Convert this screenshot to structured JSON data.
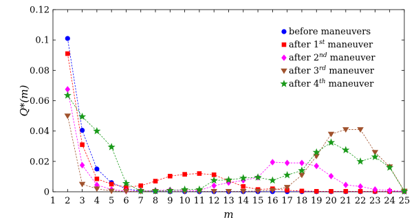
{
  "chart_data": {
    "type": "line",
    "title": "",
    "xlabel": "m",
    "ylabel": "Q*(m)",
    "xlim": [
      1,
      25
    ],
    "ylim": [
      0,
      0.12
    ],
    "xticks": [
      "1",
      "2",
      "3",
      "4",
      "5",
      "6",
      "7",
      "8",
      "9",
      "10",
      "11",
      "12",
      "13",
      "14",
      "15",
      "16",
      "17",
      "18",
      "19",
      "20",
      "21",
      "22",
      "23",
      "24",
      "25"
    ],
    "yticks": [
      "0",
      "0.02",
      "0.04",
      "0.06",
      "0.08",
      "0.1",
      "0.12"
    ],
    "ytick_values": [
      0,
      0.02,
      0.04,
      0.06,
      0.08,
      0.1,
      0.12
    ],
    "grid": false,
    "legend_position": "top-right",
    "x": [
      2,
      3,
      4,
      5,
      6,
      7,
      8,
      9,
      10,
      11,
      12,
      13,
      14,
      15,
      16,
      17,
      18,
      19,
      20,
      21,
      22,
      23,
      24,
      25
    ],
    "series": [
      {
        "name": "before maneuvers",
        "legend": {
          "pre": "before maneuvers",
          "sup": "",
          "post": ""
        },
        "color": "#0000ff",
        "marker": "circle",
        "values": [
          0.101,
          0.0405,
          0.015,
          0.006,
          0.002,
          0.0005,
          0.0002,
          0.0001,
          0.0001,
          0.0001,
          0.0001,
          0.0001,
          0.0001,
          0.0001,
          0.0001,
          0.0001,
          0.0001,
          0.0001,
          0.0001,
          0.0001,
          0.0001,
          0.0001,
          0.0001,
          0.0001
        ]
      },
      {
        "name": "after 1st maneuver",
        "legend": {
          "pre": "after 1",
          "sup": "st",
          "post": " maneuver"
        },
        "color": "#ff0000",
        "marker": "square",
        "values": [
          0.091,
          0.031,
          0.0085,
          0.005,
          0.003,
          0.004,
          0.007,
          0.0103,
          0.0115,
          0.012,
          0.0112,
          0.0072,
          0.0035,
          0.0015,
          0.002,
          0.001,
          0.0005,
          0.0003,
          0.0003,
          0.0003,
          0.0003,
          0.0003,
          0.0003,
          0.0003
        ]
      },
      {
        "name": "after 2nd maneuver",
        "legend": {
          "pre": "after 2",
          "sup": "nd",
          "post": " maneuver"
        },
        "color": "#ff00ff",
        "marker": "diamond",
        "values": [
          0.0675,
          0.0175,
          0.0045,
          0.0015,
          0.0005,
          0.0005,
          0.0008,
          0.0012,
          0.0008,
          0.0008,
          0.004,
          0.006,
          0.0075,
          0.0095,
          0.0195,
          0.019,
          0.019,
          0.017,
          0.0103,
          0.0045,
          0.0035,
          0.0015,
          0.0008,
          0.0003
        ]
      },
      {
        "name": "after 3rd maneuver",
        "legend": {
          "pre": "after 3",
          "sup": "rd",
          "post": " maneuver"
        },
        "color": "#a0522d",
        "marker": "triangle-down",
        "values": [
          0.05,
          0.005,
          0.002,
          0.0005,
          0.0003,
          0.0003,
          0.0003,
          0.0003,
          0.0003,
          0.0003,
          0.0003,
          0.0003,
          0.0003,
          0.0005,
          0.001,
          0.003,
          0.011,
          0.0235,
          0.038,
          0.041,
          0.041,
          0.026,
          0.0165,
          0.0005
        ]
      },
      {
        "name": "after 4th maneuver",
        "legend": {
          "pre": "after 4",
          "sup": "th",
          "post": " maneuver"
        },
        "color": "#1a9a1a",
        "marker": "star",
        "values": [
          0.0635,
          0.0495,
          0.04,
          0.0295,
          0.0055,
          0.0005,
          0.0005,
          0.0008,
          0.0015,
          0.0015,
          0.0075,
          0.0078,
          0.009,
          0.0095,
          0.0075,
          0.011,
          0.014,
          0.026,
          0.0325,
          0.0275,
          0.02,
          0.023,
          0.016,
          0.0003
        ]
      }
    ]
  }
}
